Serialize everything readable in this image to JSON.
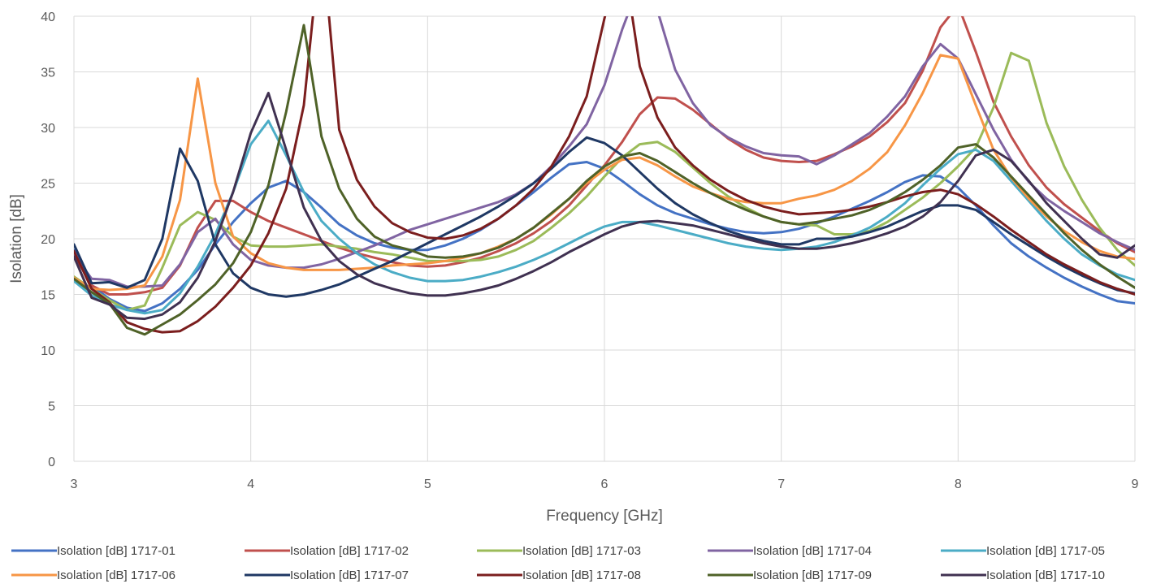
{
  "chart_data": {
    "type": "line",
    "xlabel": "Frequency [GHz]",
    "ylabel": "Isolation [dB]",
    "xlim": [
      3,
      9
    ],
    "ylim": [
      0,
      40
    ],
    "x_ticks": [
      "3",
      "4",
      "5",
      "6",
      "7",
      "8",
      "9"
    ],
    "y_ticks": [
      "0",
      "5",
      "10",
      "15",
      "20",
      "25",
      "30",
      "35",
      "40"
    ],
    "grid": "vertical and horizontal",
    "legend_position": "bottom",
    "x": [
      3.0,
      3.1,
      3.2,
      3.3,
      3.4,
      3.5,
      3.6,
      3.7,
      3.8,
      3.9,
      4.0,
      4.1,
      4.2,
      4.3,
      4.4,
      4.5,
      4.6,
      4.7,
      4.8,
      4.9,
      5.0,
      5.1,
      5.2,
      5.3,
      5.4,
      5.5,
      5.6,
      5.7,
      5.8,
      5.9,
      6.0,
      6.1,
      6.2,
      6.3,
      6.4,
      6.5,
      6.6,
      6.7,
      6.8,
      6.9,
      7.0,
      7.1,
      7.2,
      7.3,
      7.4,
      7.5,
      7.6,
      7.7,
      7.8,
      7.9,
      8.0,
      8.1,
      8.2,
      8.3,
      8.4,
      8.5,
      8.6,
      8.7,
      8.8,
      8.9,
      9.0
    ],
    "series": [
      {
        "name": "Isolation [dB] 1717-01",
        "color": "#4472C4",
        "values": [
          19.0,
          15.8,
          14.6,
          13.8,
          13.5,
          14.2,
          15.5,
          17.2,
          19.5,
          21.5,
          23.2,
          24.6,
          25.2,
          24.2,
          22.8,
          21.3,
          20.3,
          19.6,
          19.2,
          19.0,
          19.0,
          19.4,
          20.0,
          20.8,
          21.8,
          23.0,
          24.2,
          25.5,
          26.7,
          26.9,
          26.3,
          25.2,
          24.0,
          23.0,
          22.3,
          21.8,
          21.3,
          20.9,
          20.6,
          20.5,
          20.6,
          20.9,
          21.4,
          22.0,
          22.7,
          23.4,
          24.2,
          25.1,
          25.7,
          25.6,
          24.6,
          23.0,
          21.2,
          19.6,
          18.4,
          17.4,
          16.5,
          15.7,
          15.0,
          14.4,
          14.2
        ]
      },
      {
        "name": "Isolation [dB] 1717-02",
        "color": "#C0504D",
        "values": [
          18.6,
          15.8,
          15.0,
          15.0,
          15.2,
          15.6,
          17.6,
          21.0,
          23.4,
          23.4,
          22.4,
          21.6,
          21.0,
          20.4,
          19.8,
          19.2,
          18.7,
          18.3,
          17.9,
          17.6,
          17.5,
          17.6,
          17.9,
          18.3,
          18.9,
          19.6,
          20.5,
          21.6,
          23.0,
          24.8,
          26.6,
          28.7,
          31.2,
          32.7,
          32.6,
          31.6,
          30.3,
          29.0,
          28.0,
          27.3,
          27.0,
          26.9,
          27.0,
          27.6,
          28.3,
          29.2,
          30.5,
          32.2,
          35.1,
          39.0,
          41.0,
          36.8,
          32.3,
          29.2,
          26.6,
          24.6,
          23.1,
          21.9,
          20.7,
          19.6,
          18.8
        ]
      },
      {
        "name": "Isolation [dB] 1717-03",
        "color": "#9BBB59",
        "values": [
          16.6,
          15.5,
          14.5,
          13.6,
          14.0,
          17.4,
          21.2,
          22.4,
          21.7,
          20.2,
          19.4,
          19.3,
          19.3,
          19.4,
          19.5,
          19.3,
          19.1,
          18.8,
          18.6,
          18.3,
          18.0,
          18.0,
          18.0,
          18.1,
          18.4,
          19.0,
          19.8,
          21.0,
          22.3,
          23.8,
          25.6,
          27.3,
          28.5,
          28.7,
          27.8,
          26.4,
          25.0,
          23.8,
          22.8,
          22.0,
          21.5,
          21.3,
          21.2,
          20.4,
          20.4,
          20.7,
          21.5,
          22.6,
          23.7,
          25.0,
          26.5,
          28.2,
          31.8,
          36.7,
          36.0,
          30.4,
          26.5,
          23.5,
          21.0,
          19.0,
          17.6
        ]
      },
      {
        "name": "Isolation  [dB] 1717-04",
        "color": "#8064A2",
        "values": [
          18.6,
          16.4,
          16.3,
          15.7,
          15.7,
          15.8,
          17.7,
          20.6,
          21.8,
          19.5,
          18.1,
          17.6,
          17.4,
          17.4,
          17.7,
          18.2,
          18.8,
          19.4,
          20.1,
          20.8,
          21.3,
          21.8,
          22.3,
          22.8,
          23.3,
          24.0,
          25.0,
          26.5,
          28.3,
          30.3,
          33.8,
          38.8,
          43.0,
          40.5,
          35.2,
          32.2,
          30.2,
          29.1,
          28.3,
          27.7,
          27.5,
          27.4,
          26.7,
          27.5,
          28.5,
          29.5,
          31.0,
          32.8,
          35.5,
          37.5,
          36.2,
          33.0,
          29.8,
          27.1,
          25.1,
          23.6,
          22.5,
          21.5,
          20.5,
          19.7,
          19.0
        ]
      },
      {
        "name": "Isolation  [dB] 1717-05",
        "color": "#4BACC6",
        "values": [
          16.2,
          14.9,
          14.1,
          13.6,
          13.3,
          13.6,
          15.1,
          17.5,
          20.4,
          24.2,
          28.5,
          30.6,
          27.5,
          24.2,
          21.6,
          20.0,
          18.7,
          17.7,
          17.0,
          16.5,
          16.2,
          16.2,
          16.3,
          16.6,
          17.0,
          17.5,
          18.1,
          18.8,
          19.6,
          20.4,
          21.1,
          21.5,
          21.5,
          21.2,
          20.8,
          20.4,
          20.0,
          19.6,
          19.3,
          19.1,
          19.0,
          19.1,
          19.3,
          19.7,
          20.3,
          21.0,
          22.0,
          23.2,
          24.8,
          26.3,
          27.6,
          28.0,
          27.0,
          25.2,
          23.4,
          21.6,
          20.0,
          18.6,
          17.6,
          16.8,
          16.3
        ]
      },
      {
        "name": "Isolation  [dB] 1717-06",
        "color": "#F79646",
        "values": [
          16.5,
          15.5,
          15.4,
          15.5,
          15.8,
          18.4,
          23.5,
          34.4,
          25.0,
          20.2,
          18.7,
          17.8,
          17.4,
          17.2,
          17.2,
          17.2,
          17.3,
          17.4,
          17.6,
          17.7,
          17.8,
          18.0,
          18.3,
          18.7,
          19.3,
          20.0,
          21.0,
          22.2,
          23.6,
          25.0,
          26.2,
          27.1,
          27.3,
          26.6,
          25.6,
          24.7,
          24.1,
          23.6,
          23.3,
          23.2,
          23.2,
          23.6,
          23.9,
          24.4,
          25.2,
          26.3,
          27.8,
          30.2,
          33.1,
          36.5,
          36.2,
          32.0,
          28.0,
          25.5,
          23.6,
          22.0,
          20.7,
          19.7,
          18.9,
          18.4,
          18.2
        ]
      },
      {
        "name": "Isolation [dB] 1717-07",
        "color": "#1F3864",
        "values": [
          19.5,
          16.0,
          16.1,
          15.6,
          16.3,
          20.0,
          28.1,
          25.2,
          19.5,
          16.9,
          15.6,
          15.0,
          14.8,
          15.0,
          15.4,
          15.9,
          16.6,
          17.3,
          18.0,
          18.8,
          19.6,
          20.4,
          21.2,
          22.0,
          22.9,
          23.9,
          25.0,
          26.3,
          27.8,
          29.1,
          28.6,
          27.5,
          26.0,
          24.5,
          23.2,
          22.2,
          21.4,
          20.7,
          20.2,
          19.8,
          19.5,
          19.5,
          20.0,
          20.0,
          20.2,
          20.6,
          21.1,
          21.8,
          22.5,
          23.0,
          23.0,
          22.6,
          21.5,
          20.4,
          19.4,
          18.4,
          17.5,
          16.7,
          16.0,
          15.4,
          15.1
        ]
      },
      {
        "name": "Isolation  [dB] 1717-08",
        "color": "#7B1E1E",
        "values": [
          18.9,
          15.5,
          14.3,
          12.5,
          11.9,
          11.6,
          11.7,
          12.6,
          13.9,
          15.6,
          17.6,
          20.5,
          24.5,
          32.0,
          47.5,
          29.8,
          25.3,
          22.9,
          21.4,
          20.6,
          20.1,
          20.0,
          20.3,
          20.9,
          21.8,
          23.0,
          24.5,
          26.5,
          29.2,
          32.8,
          39.8,
          46.0,
          35.5,
          30.9,
          28.2,
          26.6,
          25.3,
          24.3,
          23.5,
          22.9,
          22.5,
          22.2,
          22.3,
          22.4,
          22.6,
          22.9,
          23.3,
          23.8,
          24.2,
          24.4,
          24.0,
          23.1,
          22.0,
          20.8,
          19.7,
          18.6,
          17.7,
          16.9,
          16.1,
          15.5,
          15.0
        ]
      },
      {
        "name": "Isolation [dB] 1717-09",
        "color": "#4F6228",
        "values": [
          16.4,
          15.2,
          14.2,
          12.0,
          11.4,
          12.3,
          13.2,
          14.5,
          15.9,
          17.8,
          20.6,
          24.8,
          31.4,
          39.2,
          29.2,
          24.5,
          21.8,
          20.2,
          19.4,
          19.0,
          18.4,
          18.3,
          18.4,
          18.7,
          19.2,
          20.0,
          21.0,
          22.3,
          23.6,
          25.2,
          26.5,
          27.4,
          27.7,
          27.0,
          26.0,
          25.0,
          24.1,
          23.3,
          22.6,
          22.0,
          21.5,
          21.3,
          21.5,
          21.8,
          22.1,
          22.6,
          23.3,
          24.2,
          25.3,
          26.6,
          28.2,
          28.5,
          27.3,
          25.6,
          23.9,
          22.2,
          20.5,
          19.0,
          17.7,
          16.6,
          15.6
        ]
      },
      {
        "name": "Isolation [dB] 1717-10",
        "color": "#403151",
        "values": [
          18.4,
          14.7,
          14.1,
          12.9,
          12.8,
          13.2,
          14.3,
          16.5,
          19.8,
          24.2,
          29.5,
          33.1,
          28.0,
          22.8,
          19.8,
          18.0,
          16.8,
          16.0,
          15.5,
          15.1,
          14.9,
          14.9,
          15.1,
          15.4,
          15.8,
          16.4,
          17.1,
          17.9,
          18.8,
          19.6,
          20.4,
          21.1,
          21.5,
          21.6,
          21.4,
          21.2,
          20.8,
          20.4,
          20.0,
          19.6,
          19.3,
          19.1,
          19.1,
          19.3,
          19.6,
          20.0,
          20.5,
          21.1,
          22.0,
          23.3,
          25.2,
          27.5,
          28.0,
          27.0,
          25.2,
          23.2,
          21.6,
          20.0,
          18.6,
          18.3,
          19.4
        ]
      }
    ]
  }
}
